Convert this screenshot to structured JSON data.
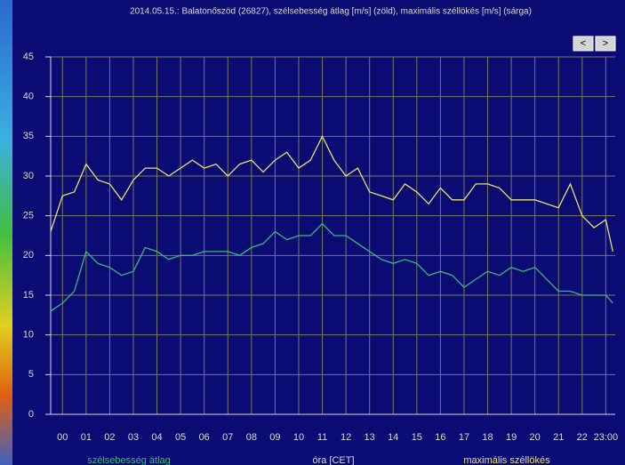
{
  "chart_data": {
    "type": "line",
    "title": "2014.05.15.: Balatonőszöd (26827), szélsebesség átlag [m/s] (zöld), maximális széllökés [m/s] (sárga)",
    "x_label": "óra [CET]",
    "x": [
      -0.5,
      0,
      0.5,
      1,
      1.5,
      2,
      2.5,
      3,
      3.5,
      4,
      4.5,
      5,
      5.5,
      6,
      6.5,
      7,
      7.5,
      8,
      8.5,
      9,
      9.5,
      10,
      10.5,
      11,
      11.5,
      12,
      12.5,
      13,
      13.5,
      14,
      14.5,
      15,
      15.5,
      16,
      16.5,
      17,
      17.5,
      18,
      18.5,
      19,
      19.5,
      20,
      20.5,
      21,
      21.5,
      22,
      22.5,
      23,
      23.3
    ],
    "xlim": [
      -0.5,
      23.4
    ],
    "xticks": [
      {
        "value": 0,
        "label": "00"
      },
      {
        "value": 1,
        "label": "01"
      },
      {
        "value": 2,
        "label": "02"
      },
      {
        "value": 3,
        "label": "03"
      },
      {
        "value": 4,
        "label": "04"
      },
      {
        "value": 5,
        "label": "05"
      },
      {
        "value": 6,
        "label": "06"
      },
      {
        "value": 7,
        "label": "07"
      },
      {
        "value": 8,
        "label": "08"
      },
      {
        "value": 9,
        "label": "09"
      },
      10,
      11,
      12,
      13,
      14,
      15,
      16,
      17,
      18,
      19,
      20,
      21,
      22,
      {
        "value": 23,
        "label": "23:00"
      }
    ],
    "ylim": [
      0,
      45
    ],
    "yticks": [
      0,
      5,
      10,
      15,
      20,
      25,
      30,
      35,
      40,
      45
    ],
    "grid": true,
    "series": [
      {
        "name": "szélsebesség átlag",
        "color": "#3cb878",
        "values": [
          13,
          14,
          15.5,
          20.5,
          19,
          18.5,
          17.5,
          18,
          21,
          20.5,
          19.5,
          20,
          20,
          20.5,
          20.5,
          20.5,
          20,
          21,
          21.5,
          23,
          22,
          22.5,
          22.5,
          24,
          22.5,
          22.5,
          21.5,
          20.5,
          19.5,
          19,
          19.5,
          19,
          17.5,
          18,
          17.5,
          16,
          17,
          18,
          17.5,
          18.5,
          18,
          18.5,
          17,
          15.5,
          15.5,
          15,
          15,
          15,
          14
        ]
      },
      {
        "name": "maximális széllökés",
        "color": "#e8e070",
        "values": [
          23,
          27.5,
          28,
          31.5,
          29.5,
          29,
          27,
          29.5,
          31,
          31,
          30,
          31,
          32,
          31,
          31.5,
          30,
          31.5,
          32,
          30.5,
          32,
          33,
          31,
          32,
          35,
          32,
          30,
          31,
          28,
          27.5,
          27,
          29,
          28,
          26.5,
          28.5,
          27,
          27,
          29,
          29,
          28.5,
          27,
          27,
          27,
          26.5,
          26,
          29,
          25,
          23.5,
          24.5,
          20.5
        ]
      }
    ]
  },
  "ui": {
    "buttons": [
      "<",
      ">"
    ]
  }
}
